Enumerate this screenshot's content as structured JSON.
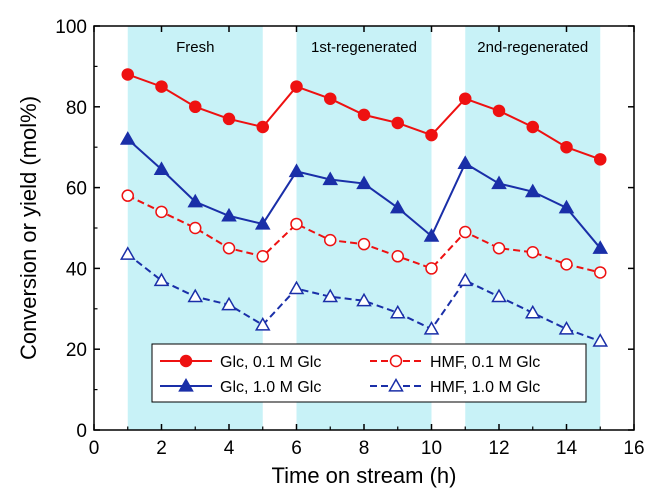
{
  "chart_data": {
    "type": "line",
    "xlabel": "Time on stream (h)",
    "ylabel": "Conversion or yield (mol%)",
    "xlim": [
      0,
      16
    ],
    "ylim": [
      0,
      100
    ],
    "xticks": [
      0,
      2,
      4,
      6,
      8,
      10,
      12,
      14,
      16
    ],
    "yticks": [
      0,
      20,
      40,
      60,
      80,
      100
    ],
    "grid": false,
    "legend_position": "bottom-center",
    "shaded_regions": [
      {
        "label": "Fresh",
        "x": [
          1,
          5
        ],
        "color": "#c8f2f7"
      },
      {
        "label": "1st-regenerated",
        "x": [
          6,
          10
        ],
        "color": "#c8f2f7"
      },
      {
        "label": "2nd-regenerated",
        "x": [
          11,
          15
        ],
        "color": "#c8f2f7"
      }
    ],
    "series": [
      {
        "name": "Glc, 0.1 M Glc",
        "color": "#ee1111",
        "line": "solid",
        "marker": "circle",
        "filled": true,
        "x": [
          1,
          2,
          3,
          4,
          5,
          6,
          7,
          8,
          9,
          10,
          11,
          12,
          13,
          14,
          15
        ],
        "y": [
          88,
          85,
          80,
          77,
          75,
          85,
          82,
          78,
          76,
          73,
          82,
          79,
          75,
          70,
          67
        ]
      },
      {
        "name": "Glc, 1.0 M Glc",
        "color": "#1a2fa8",
        "line": "solid",
        "marker": "triangle",
        "filled": true,
        "x": [
          1,
          2,
          3,
          4,
          5,
          6,
          7,
          8,
          9,
          10,
          11,
          12,
          13,
          14,
          15
        ],
        "y": [
          72,
          64.5,
          56.5,
          53,
          51,
          64,
          62,
          61,
          55,
          48,
          66,
          61,
          59,
          55,
          45
        ]
      },
      {
        "name": "HMF, 0.1 M Glc",
        "color": "#ee1111",
        "line": "dashed",
        "marker": "circle",
        "filled": false,
        "x": [
          1,
          2,
          3,
          4,
          5,
          6,
          7,
          8,
          9,
          10,
          11,
          12,
          13,
          14,
          15
        ],
        "y": [
          58,
          54,
          50,
          45,
          43,
          51,
          47,
          46,
          43,
          40,
          49,
          45,
          44,
          41,
          39
        ]
      },
      {
        "name": "HMF, 1.0 M Glc",
        "color": "#1a2fa8",
        "line": "dashed",
        "marker": "triangle",
        "filled": false,
        "x": [
          1,
          2,
          3,
          4,
          5,
          6,
          7,
          8,
          9,
          10,
          11,
          12,
          13,
          14,
          15
        ],
        "y": [
          43.5,
          37,
          33,
          31,
          26,
          35,
          33,
          32,
          29,
          25,
          37,
          33,
          29,
          25,
          22
        ]
      }
    ]
  }
}
